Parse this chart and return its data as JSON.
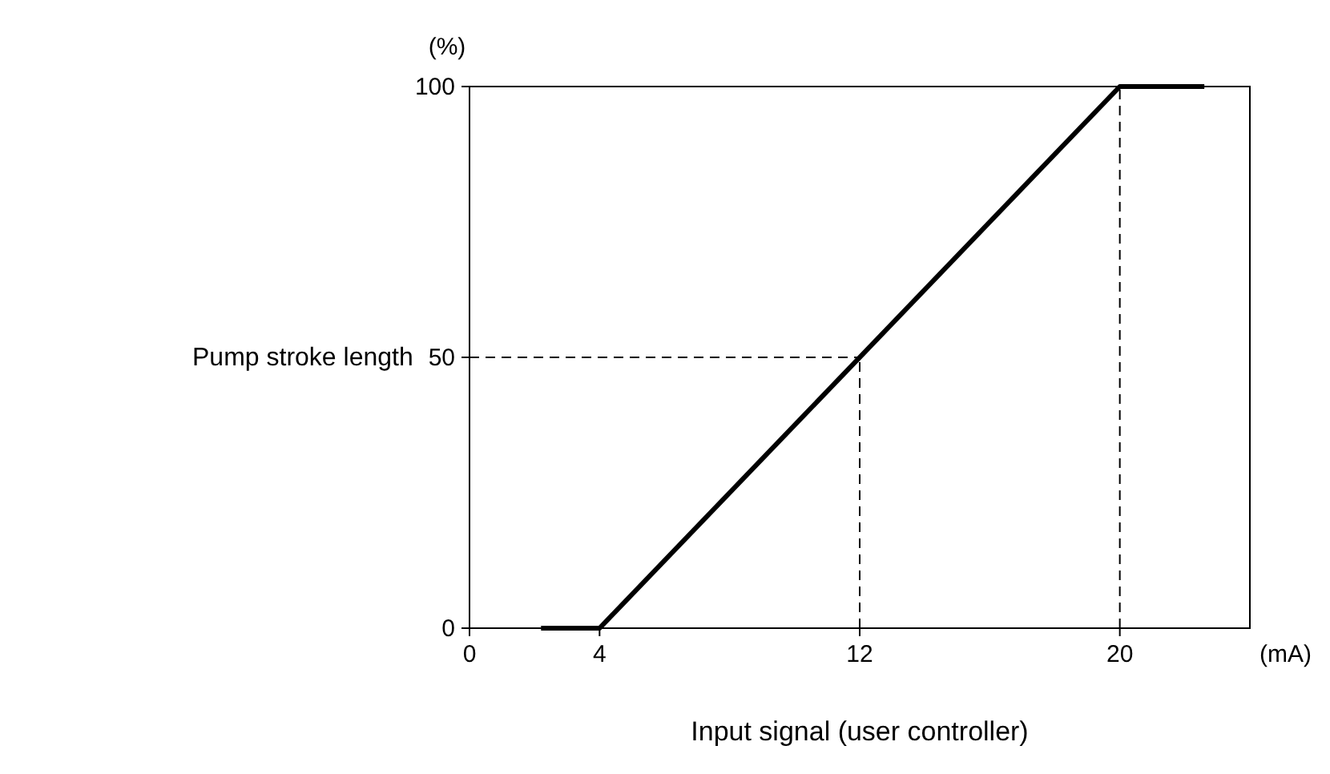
{
  "chart_data": {
    "type": "line",
    "xlabel": "Input signal (user controller)",
    "ylabel": "Pump stroke length",
    "annotations": [
      "(%)",
      "(mA)"
    ],
    "series": [
      {
        "color": "#000000",
        "x": [
          2.2,
          4,
          20,
          22.6
        ],
        "values": [
          0,
          0,
          100,
          100
        ]
      }
    ],
    "xlim": [
      0,
      24
    ],
    "xticks": [
      0,
      4,
      12,
      20
    ],
    "ylim": [
      0,
      100
    ],
    "yticks": [
      0,
      50,
      100
    ],
    "ref_lines": [
      {
        "axis": "x",
        "value": 12,
        "color": "#000000",
        "line_style": "dashed"
      },
      {
        "axis": "x",
        "value": 20,
        "color": "#000000",
        "line_style": "dashed"
      },
      {
        "axis": "y",
        "value": 50,
        "color": "#000000",
        "line_style": "dashed"
      }
    ],
    "grid": false,
    "marker": "none",
    "line_style": "solid"
  }
}
